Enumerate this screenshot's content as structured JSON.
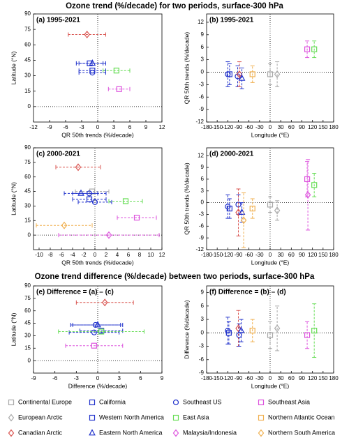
{
  "headings": [
    "Ozone trend (%/decade) for two periods, surface-300 hPa",
    "Ozone trend difference (%/decade) between two periods, surface-300 hPa"
  ],
  "legend": [
    {
      "name": "Continental Europe",
      "color": "#aaaaaa",
      "marker": "square"
    },
    {
      "name": "California",
      "color": "#2233cc",
      "marker": "square"
    },
    {
      "name": "Southeast US",
      "color": "#2233cc",
      "marker": "circle"
    },
    {
      "name": "Southeast Asia",
      "color": "#dd55dd",
      "marker": "square"
    },
    {
      "name": "European Arctic",
      "color": "#aaaaaa",
      "marker": "diamond"
    },
    {
      "name": "Western North America",
      "color": "#2233cc",
      "marker": "square"
    },
    {
      "name": "East Asia",
      "color": "#66dd55",
      "marker": "square"
    },
    {
      "name": "Northern Atlantic Ocean",
      "color": "#f0b050",
      "marker": "square"
    },
    {
      "name": "Canadian Arctic",
      "color": "#d9534f",
      "marker": "diamond"
    },
    {
      "name": "Eastern North America",
      "color": "#2233cc",
      "marker": "triangle"
    },
    {
      "name": "Malaysia/Indonesia",
      "color": "#dd55dd",
      "marker": "diamond"
    },
    {
      "name": "Northern South America",
      "color": "#f0b050",
      "marker": "diamond"
    }
  ],
  "chart_data": [
    {
      "type": "errorbar",
      "label": "(a) 1995-2021",
      "xlabel": "QR 50th trends (%/decade)",
      "ylabel": "Latitude (°N)",
      "error_axis": "x",
      "xlim": [
        -12,
        12
      ],
      "xticks": [
        -12,
        -9,
        -6,
        -3,
        0,
        3,
        6,
        9,
        12
      ],
      "ylim": [
        -15,
        90
      ],
      "yticks": [
        0,
        15,
        30,
        45,
        60,
        75,
        90
      ],
      "series": [
        {
          "color": "#d9534f",
          "marker": "diamond",
          "x": [
            -2
          ],
          "values": [
            70
          ],
          "errors": [
            3.5
          ]
        },
        {
          "color": "#2233cc",
          "marker": "square",
          "x": [
            -1.5
          ],
          "values": [
            42
          ],
          "errors": [
            2.5
          ]
        },
        {
          "color": "#2233cc",
          "marker": "triangle",
          "x": [
            -1
          ],
          "values": [
            42
          ],
          "errors": [
            2.5
          ]
        },
        {
          "color": "#2233cc",
          "marker": "square",
          "x": [
            -1
          ],
          "values": [
            35
          ],
          "errors": [
            2.5
          ]
        },
        {
          "color": "#2233cc",
          "marker": "circle",
          "x": [
            -1
          ],
          "values": [
            33
          ],
          "errors": [
            2.5
          ]
        },
        {
          "color": "#66dd55",
          "marker": "square",
          "x": [
            3.5
          ],
          "values": [
            35
          ],
          "errors": [
            2.5
          ]
        },
        {
          "color": "#dd55dd",
          "marker": "square",
          "x": [
            4
          ],
          "values": [
            17
          ],
          "errors": [
            2
          ]
        }
      ]
    },
    {
      "type": "errorbar",
      "label": "(b) 1995-2021",
      "xlabel": "Longitude (°E)",
      "ylabel": "QR 50th trends (%/decade)",
      "error_axis": "y",
      "xlim": [
        -180,
        180
      ],
      "xticks": [
        -180,
        -150,
        -120,
        -90,
        -60,
        -30,
        0,
        30,
        60,
        90,
        120,
        150,
        180
      ],
      "ylim": [
        -12,
        14
      ],
      "yticks": [
        -12,
        -9,
        -6,
        -3,
        0,
        3,
        6,
        9,
        12
      ],
      "series": [
        {
          "color": "#2233cc",
          "marker": "circle",
          "x": [
            -120
          ],
          "values": [
            -0.5
          ],
          "errors": [
            3
          ]
        },
        {
          "color": "#2233cc",
          "marker": "square",
          "x": [
            -115
          ],
          "values": [
            -0.5
          ],
          "errors": [
            2.5
          ]
        },
        {
          "color": "#2233cc",
          "marker": "circle",
          "x": [
            -92
          ],
          "values": [
            -1
          ],
          "errors": [
            2.5
          ]
        },
        {
          "color": "#d9534f",
          "marker": "diamond",
          "x": [
            -87
          ],
          "values": [
            -0.5
          ],
          "errors": [
            3
          ]
        },
        {
          "color": "#2233cc",
          "marker": "triangle",
          "x": [
            -80
          ],
          "values": [
            -1.5
          ],
          "errors": [
            2.5
          ]
        },
        {
          "color": "#f0b050",
          "marker": "square",
          "x": [
            -50
          ],
          "values": [
            -0.5
          ],
          "errors": [
            2
          ]
        },
        {
          "color": "#aaaaaa",
          "marker": "square",
          "x": [
            0
          ],
          "values": [
            -0.5
          ],
          "errors": [
            2.5
          ]
        },
        {
          "color": "#aaaaaa",
          "marker": "diamond",
          "x": [
            20
          ],
          "values": [
            -0.5
          ],
          "errors": [
            3
          ]
        },
        {
          "color": "#dd55dd",
          "marker": "square",
          "x": [
            105
          ],
          "values": [
            5.5
          ],
          "errors": [
            2
          ]
        },
        {
          "color": "#66dd55",
          "marker": "square",
          "x": [
            125
          ],
          "values": [
            5.5
          ],
          "errors": [
            2
          ]
        }
      ]
    },
    {
      "type": "errorbar",
      "label": "(c) 2000-2021",
      "xlabel": "QR 50th trends (%/decade)",
      "ylabel": "Latitude (°N)",
      "error_axis": "x",
      "xlim": [
        -11,
        12
      ],
      "xticks": [
        -10,
        -8,
        -6,
        -4,
        -2,
        0,
        2,
        4,
        6,
        8,
        10,
        12
      ],
      "ylim": [
        -15,
        90
      ],
      "yticks": [
        0,
        15,
        30,
        45,
        60,
        75,
        90
      ],
      "series": [
        {
          "color": "#d9534f",
          "marker": "diamond",
          "x": [
            -3
          ],
          "values": [
            70
          ],
          "errors": [
            4
          ]
        },
        {
          "color": "#aaaaaa",
          "marker": "square",
          "x": [
            -0.5
          ],
          "values": [
            45
          ],
          "errors": [
            3
          ]
        },
        {
          "color": "#2233cc",
          "marker": "triangle",
          "x": [
            -2.5
          ],
          "values": [
            43
          ],
          "errors": [
            3
          ]
        },
        {
          "color": "#2233cc",
          "marker": "circle",
          "x": [
            -1
          ],
          "values": [
            43
          ],
          "errors": [
            3
          ]
        },
        {
          "color": "#2233cc",
          "marker": "square",
          "x": [
            -1
          ],
          "values": [
            37
          ],
          "errors": [
            3
          ]
        },
        {
          "color": "#2233cc",
          "marker": "circle",
          "x": [
            0
          ],
          "values": [
            34
          ],
          "errors": [
            3
          ]
        },
        {
          "color": "#66dd55",
          "marker": "square",
          "x": [
            5.5
          ],
          "values": [
            35
          ],
          "errors": [
            3
          ]
        },
        {
          "color": "#dd55dd",
          "marker": "square",
          "x": [
            7.5
          ],
          "values": [
            18
          ],
          "errors": [
            3.5
          ]
        },
        {
          "color": "#f0b050",
          "marker": "diamond",
          "x": [
            -5.5
          ],
          "values": [
            10
          ],
          "errors": [
            5
          ]
        },
        {
          "color": "#dd55dd",
          "marker": "diamond",
          "x": [
            2.5
          ],
          "values": [
            0
          ],
          "errors": [
            9
          ]
        }
      ]
    },
    {
      "type": "errorbar",
      "label": "(d) 2000-2021",
      "xlabel": "Longitude (°E)",
      "ylabel": "QR 50th trends (%/decade)",
      "error_axis": "y",
      "xlim": [
        -180,
        180
      ],
      "xticks": [
        -180,
        -150,
        -120,
        -90,
        -60,
        -30,
        0,
        30,
        60,
        90,
        120,
        150,
        180
      ],
      "ylim": [
        -12,
        14
      ],
      "yticks": [
        -12,
        -9,
        -6,
        -3,
        0,
        3,
        6,
        9,
        12
      ],
      "series": [
        {
          "color": "#2233cc",
          "marker": "circle",
          "x": [
            -120
          ],
          "values": [
            -1
          ],
          "errors": [
            3
          ]
        },
        {
          "color": "#2233cc",
          "marker": "square",
          "x": [
            -115
          ],
          "values": [
            -1.5
          ],
          "errors": [
            2.5
          ]
        },
        {
          "color": "#2233cc",
          "marker": "circle",
          "x": [
            -90
          ],
          "values": [
            -0.5
          ],
          "errors": [
            2.5
          ]
        },
        {
          "color": "#d9534f",
          "marker": "diamond",
          "x": [
            -90
          ],
          "values": [
            -2.5
          ],
          "errors": [
            6
          ]
        },
        {
          "color": "#2233cc",
          "marker": "triangle",
          "x": [
            -80
          ],
          "values": [
            -2.5
          ],
          "errors": [
            2.5
          ]
        },
        {
          "color": "#f0b050",
          "marker": "diamond",
          "x": [
            -75
          ],
          "values": [
            -4.5
          ],
          "errors": [
            7
          ]
        },
        {
          "color": "#f0b050",
          "marker": "square",
          "x": [
            -50
          ],
          "values": [
            -1.5
          ],
          "errors": [
            2.5
          ]
        },
        {
          "color": "#aaaaaa",
          "marker": "square",
          "x": [
            0
          ],
          "values": [
            -0.5
          ],
          "errors": [
            2
          ]
        },
        {
          "color": "#aaaaaa",
          "marker": "diamond",
          "x": [
            20
          ],
          "values": [
            -2
          ],
          "errors": [
            2.5
          ]
        },
        {
          "color": "#dd55dd",
          "marker": "square",
          "x": [
            105
          ],
          "values": [
            6
          ],
          "errors": [
            4.5
          ]
        },
        {
          "color": "#dd55dd",
          "marker": "diamond",
          "x": [
            107
          ],
          "values": [
            2
          ],
          "errors": [
            9
          ]
        },
        {
          "color": "#66dd55",
          "marker": "square",
          "x": [
            125
          ],
          "values": [
            4.5
          ],
          "errors": [
            3
          ]
        }
      ]
    },
    {
      "type": "errorbar",
      "label": "(e) Difference = (a) – (c)",
      "xlabel": "Difference (%/decade)",
      "ylabel": "Latitude (°N)",
      "error_axis": "x",
      "xlim": [
        -9,
        9
      ],
      "xticks": [
        -9,
        -6,
        -3,
        0,
        3,
        6,
        9
      ],
      "ylim": [
        -15,
        90
      ],
      "yticks": [
        0,
        15,
        30,
        45,
        60,
        75,
        90
      ],
      "series": [
        {
          "color": "#d9534f",
          "marker": "diamond",
          "x": [
            1
          ],
          "values": [
            70
          ],
          "errors": [
            4
          ]
        },
        {
          "color": "#2233cc",
          "marker": "triangle",
          "x": [
            0
          ],
          "values": [
            43
          ],
          "errors": [
            3.5
          ]
        },
        {
          "color": "#2233cc",
          "marker": "circle",
          "x": [
            -0.3
          ],
          "values": [
            43
          ],
          "errors": [
            3.5
          ]
        },
        {
          "color": "#2233cc",
          "marker": "square",
          "x": [
            0.5
          ],
          "values": [
            36
          ],
          "errors": [
            3
          ]
        },
        {
          "color": "#2233cc",
          "marker": "circle",
          "x": [
            -0.5
          ],
          "values": [
            34
          ],
          "errors": [
            3.5
          ]
        },
        {
          "color": "#66dd55",
          "marker": "square",
          "x": [
            0.5
          ],
          "values": [
            35
          ],
          "errors": [
            6
          ]
        },
        {
          "color": "#dd55dd",
          "marker": "square",
          "x": [
            -0.5
          ],
          "values": [
            18
          ],
          "errors": [
            4
          ]
        }
      ]
    },
    {
      "type": "errorbar",
      "label": "(f) Difference = (b) – (d)",
      "xlabel": "Longitude (°E)",
      "ylabel": "Difference (%/decade)",
      "error_axis": "y",
      "xlim": [
        -180,
        180
      ],
      "xticks": [
        -180,
        -150,
        -120,
        -90,
        -60,
        -30,
        0,
        30,
        60,
        90,
        120,
        150,
        180
      ],
      "ylim": [
        -9,
        10.5
      ],
      "yticks": [
        -9,
        -6,
        -3,
        0,
        3,
        6,
        9
      ],
      "series": [
        {
          "color": "#2233cc",
          "marker": "circle",
          "x": [
            -120
          ],
          "values": [
            0.5
          ],
          "errors": [
            3
          ]
        },
        {
          "color": "#2233cc",
          "marker": "square",
          "x": [
            -117
          ],
          "values": [
            0
          ],
          "errors": [
            2.5
          ]
        },
        {
          "color": "#d9534f",
          "marker": "diamond",
          "x": [
            -90
          ],
          "values": [
            1
          ],
          "errors": [
            4
          ]
        },
        {
          "color": "#2233cc",
          "marker": "circle",
          "x": [
            -88
          ],
          "values": [
            -0.5
          ],
          "errors": [
            2.5
          ]
        },
        {
          "color": "#2233cc",
          "marker": "triangle",
          "x": [
            -82
          ],
          "values": [
            0.5
          ],
          "errors": [
            2.5
          ]
        },
        {
          "color": "#f0b050",
          "marker": "square",
          "x": [
            -50
          ],
          "values": [
            0.5
          ],
          "errors": [
            2.5
          ]
        },
        {
          "color": "#aaaaaa",
          "marker": "square",
          "x": [
            0
          ],
          "values": [
            -0.5
          ],
          "errors": [
            3
          ]
        },
        {
          "color": "#aaaaaa",
          "marker": "diamond",
          "x": [
            20
          ],
          "values": [
            1
          ],
          "errors": [
            5
          ]
        },
        {
          "color": "#dd55dd",
          "marker": "square",
          "x": [
            105
          ],
          "values": [
            -0.5
          ],
          "errors": [
            3
          ]
        },
        {
          "color": "#66dd55",
          "marker": "square",
          "x": [
            125
          ],
          "values": [
            0.5
          ],
          "errors": [
            6
          ]
        }
      ]
    }
  ]
}
